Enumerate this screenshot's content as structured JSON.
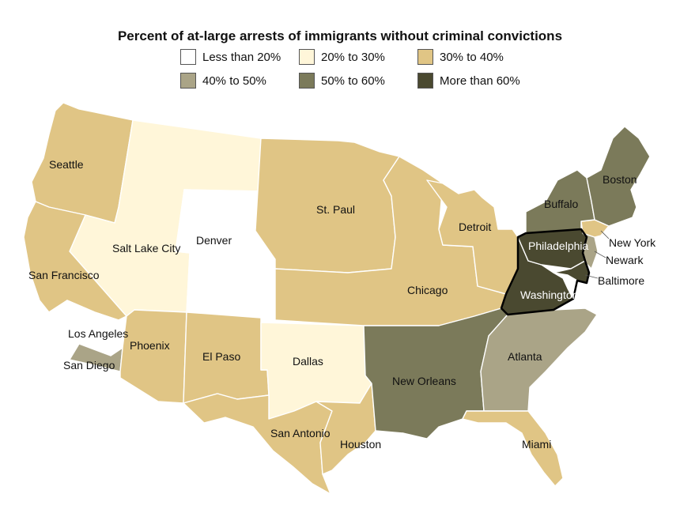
{
  "title": "Percent of at-large arrests of immigrants without criminal convictions",
  "legend": [
    {
      "label": "Less than 20%",
      "color": "#ffffff"
    },
    {
      "label": "20% to 30%",
      "color": "#fff6d9"
    },
    {
      "label": "30% to 40%",
      "color": "#e0c585"
    },
    {
      "label": "40% to 50%",
      "color": "#aaa487"
    },
    {
      "label": "50% to 60%",
      "color": "#7b7a5a"
    },
    {
      "label": "More than 60%",
      "color": "#4a4930"
    }
  ],
  "regions": [
    {
      "name": "Seattle",
      "category": "30% to 40%"
    },
    {
      "name": "Salt Lake City",
      "category": "20% to 30%"
    },
    {
      "name": "Denver",
      "category": "Less than 20%"
    },
    {
      "name": "San Francisco",
      "category": "30% to 40%"
    },
    {
      "name": "Los Angeles",
      "category": "Less than 20%"
    },
    {
      "name": "San Diego",
      "category": "40% to 50%"
    },
    {
      "name": "Phoenix",
      "category": "30% to 40%"
    },
    {
      "name": "El Paso",
      "category": "30% to 40%"
    },
    {
      "name": "Dallas",
      "category": "20% to 30%"
    },
    {
      "name": "San Antonio",
      "category": "30% to 40%"
    },
    {
      "name": "Houston",
      "category": "30% to 40%"
    },
    {
      "name": "St. Paul",
      "category": "30% to 40%"
    },
    {
      "name": "Chicago",
      "category": "30% to 40%"
    },
    {
      "name": "Detroit",
      "category": "30% to 40%"
    },
    {
      "name": "New Orleans",
      "category": "50% to 60%"
    },
    {
      "name": "Atlanta",
      "category": "40% to 50%"
    },
    {
      "name": "Miami",
      "category": "30% to 40%"
    },
    {
      "name": "Washington",
      "category": "More than 60%"
    },
    {
      "name": "Philadelphia",
      "category": "More than 60%"
    },
    {
      "name": "Baltimore",
      "category": "More than 60%"
    },
    {
      "name": "Newark",
      "category": "40% to 50%"
    },
    {
      "name": "New York",
      "category": "30% to 40%"
    },
    {
      "name": "Buffalo",
      "category": "50% to 60%"
    },
    {
      "name": "Boston",
      "category": "50% to 60%"
    }
  ],
  "labels": {
    "seattle": "Seattle",
    "salt_lake_city": "Salt Lake City",
    "denver": "Denver",
    "san_francisco": "San Francisco",
    "los_angeles": "Los Angeles",
    "san_diego": "San Diego",
    "phoenix": "Phoenix",
    "el_paso": "El Paso",
    "dallas": "Dallas",
    "san_antonio": "San Antonio",
    "houston": "Houston",
    "st_paul": "St. Paul",
    "chicago": "Chicago",
    "detroit": "Detroit",
    "new_orleans": "New Orleans",
    "atlanta": "Atlanta",
    "miami": "Miami",
    "washington": "Washington",
    "philadelphia": "Philadelphia",
    "baltimore": "Baltimore",
    "newark": "Newark",
    "new_york": "New York",
    "buffalo": "Buffalo",
    "boston": "Boston"
  }
}
